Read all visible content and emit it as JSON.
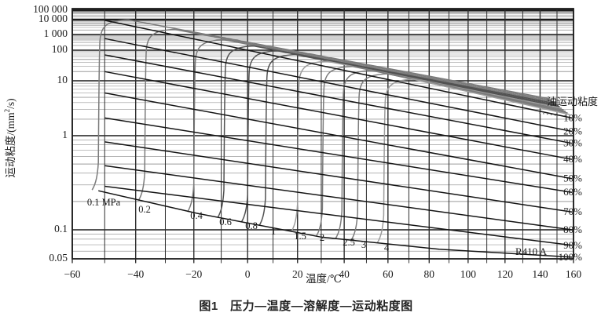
{
  "figure": {
    "caption": "图1　压力—温度—溶解度—运动粘度图"
  },
  "chart_data": {
    "type": "line",
    "title": "压力—温度—溶解度—运动粘度图",
    "xlabel": "温度/℃",
    "ylabel": "运动粘度/(mm2/s)",
    "right_axis_title": "油运动粘度",
    "refrigerant_annotation": "R410 A",
    "grid": true,
    "x_axis": {
      "scale": "log(T+273)",
      "min": -60,
      "max": 160,
      "grid_step_c": 10,
      "ticks": [
        {
          "value": -60,
          "label": "−60"
        },
        {
          "value": -40,
          "label": "−40"
        },
        {
          "value": -20,
          "label": "−20"
        },
        {
          "value": 0,
          "label": "0"
        },
        {
          "value": 20,
          "label": "20"
        },
        {
          "value": 40,
          "label": "40"
        },
        {
          "value": 60,
          "label": "60"
        },
        {
          "value": 80,
          "label": "80"
        },
        {
          "value": 100,
          "label": "100"
        },
        {
          "value": 120,
          "label": "120"
        },
        {
          "value": 140,
          "label": "140"
        },
        {
          "value": 160,
          "label": "160"
        }
      ]
    },
    "y_axis": {
      "scale": "compressed double-log viscosity scale",
      "unit": "mm2/s",
      "min": 0.05,
      "max": 100000,
      "ticks": [
        {
          "value": 100000,
          "label": "100 000"
        },
        {
          "value": 10000,
          "label": "10 000"
        },
        {
          "value": 1000,
          "label": "1 000"
        },
        {
          "value": 100,
          "label": "100"
        },
        {
          "value": 10,
          "label": "10"
        },
        {
          "value": 1,
          "label": "1"
        },
        {
          "value": 0.1,
          "label": "0.1"
        },
        {
          "value": 0.05,
          "label": "0.05"
        }
      ]
    },
    "solubility_lines": [
      {
        "label": "10%",
        "points": [
          [
            -50,
            9000
          ],
          [
            160,
            2.1
          ]
        ]
      },
      {
        "label": "20%",
        "points": [
          [
            -50,
            550
          ],
          [
            160,
            1.2
          ]
        ]
      },
      {
        "label": "30%",
        "points": [
          [
            -50,
            70
          ],
          [
            160,
            0.83
          ]
        ]
      },
      {
        "label": "40%",
        "points": [
          [
            -50,
            20
          ],
          [
            160,
            0.56
          ]
        ]
      },
      {
        "label": "50%",
        "points": [
          [
            -50,
            6
          ],
          [
            160,
            0.35
          ]
        ]
      },
      {
        "label": "60%",
        "points": [
          [
            -50,
            2.1
          ],
          [
            160,
            0.25
          ]
        ]
      },
      {
        "label": "70%",
        "points": [
          [
            -50,
            0.86
          ],
          [
            160,
            0.155
          ]
        ]
      },
      {
        "label": "80%",
        "points": [
          [
            -50,
            0.48
          ],
          [
            160,
            0.1
          ]
        ]
      },
      {
        "label": "90%",
        "points": [
          [
            -50,
            0.29
          ],
          [
            160,
            0.069
          ]
        ]
      },
      {
        "label": "100%",
        "points": [
          [
            -52,
            0.26
          ],
          [
            -19,
            0.15
          ],
          [
            30,
            0.084
          ],
          [
            85,
            0.063
          ],
          [
            160,
            0.052
          ]
        ]
      }
    ],
    "pressure_lines": [
      {
        "label": "0.1 MPa",
        "pressure_mpa": 0.1,
        "foot_temp_c": -52
      },
      {
        "label": "0.2",
        "pressure_mpa": 0.2,
        "foot_temp_c": -37
      },
      {
        "label": "0.4",
        "pressure_mpa": 0.4,
        "foot_temp_c": -20
      },
      {
        "label": "0.6",
        "pressure_mpa": 0.6,
        "foot_temp_c": -9
      },
      {
        "label": "0.8",
        "pressure_mpa": 0.8,
        "foot_temp_c": 0
      },
      {
        "label": "1",
        "pressure_mpa": 1.0,
        "foot_temp_c": 7
      },
      {
        "label": "1.5",
        "pressure_mpa": 1.5,
        "foot_temp_c": 20
      },
      {
        "label": "2",
        "pressure_mpa": 2.0,
        "foot_temp_c": 30.5
      },
      {
        "label": "2.5",
        "pressure_mpa": 2.5,
        "foot_temp_c": 39
      },
      {
        "label": "3",
        "pressure_mpa": 3.0,
        "foot_temp_c": 46
      },
      {
        "label": "4",
        "pressure_mpa": 4.0,
        "foot_temp_c": 58
      }
    ]
  },
  "colors": {
    "background": "#ffffff",
    "grid_minor": "#9b9b9b",
    "grid_major": "#1c1c1c",
    "frame": "#1c1c1c",
    "solubility_line": "#141414",
    "pressure_line": "#7b7b7b",
    "pressure_line_dark": "#525252",
    "pressure_line_light": "#9c9c9c",
    "text": "#1a1a1a"
  }
}
